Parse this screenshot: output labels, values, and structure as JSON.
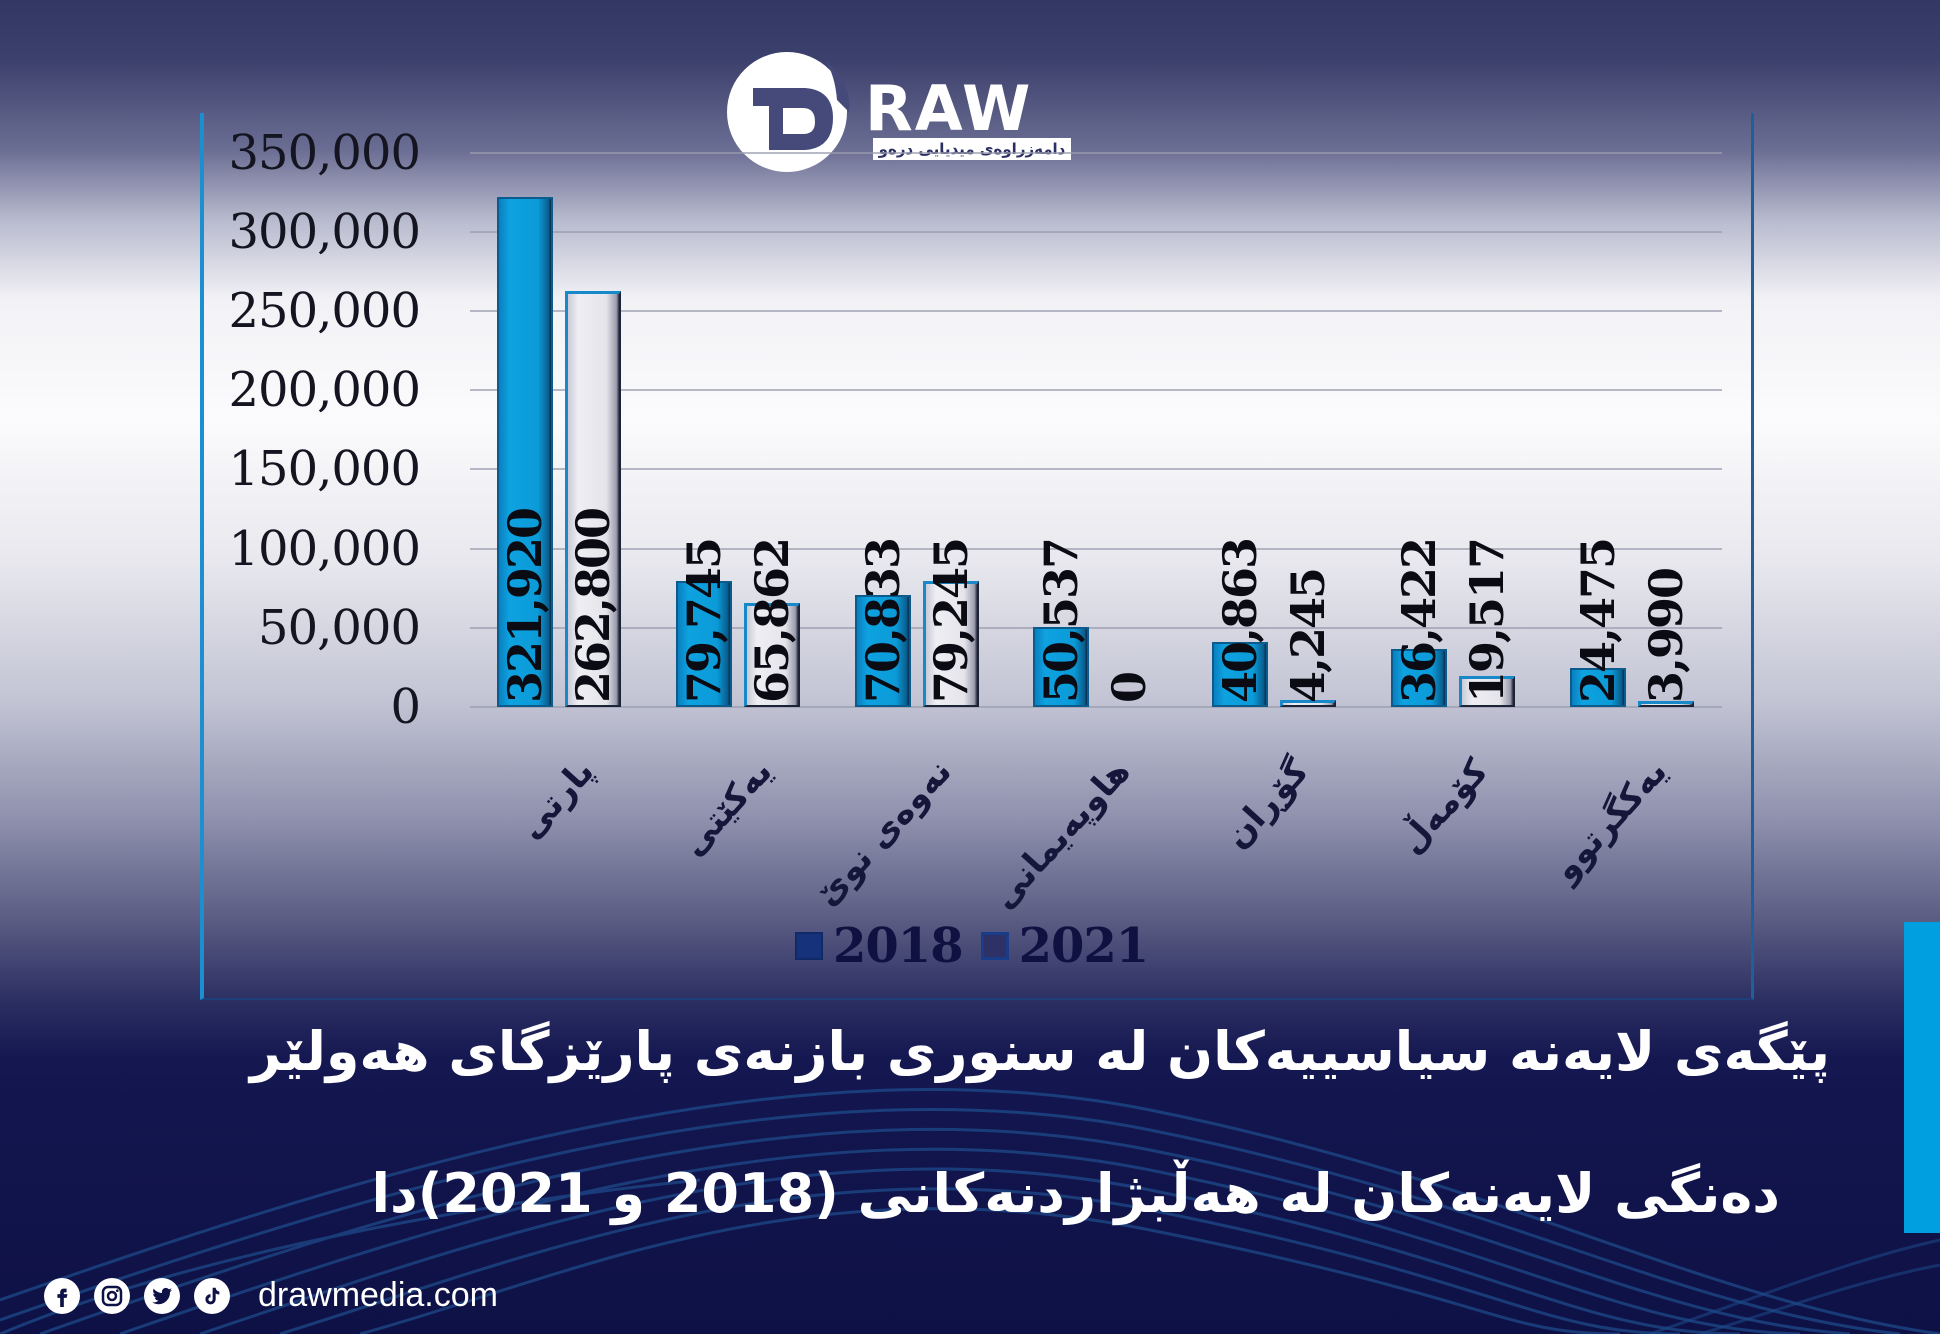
{
  "brand": {
    "logo_text": "RAW",
    "logo_tagline": "دامەزراوەی میدیایی درەو",
    "website": "drawmedia.com",
    "social_icons": [
      "facebook-icon",
      "instagram-icon",
      "twitter-icon",
      "tiktok-icon"
    ],
    "accent_color": "#00a0e0"
  },
  "title": {
    "line1": "پێگەی لایەنە سیاسییەکان لە سنوری بازنەی پارێزگای هەولێر",
    "line2": "دەنگی لایەنەکان لە هەڵبژاردنەکانی (2018 و 2021)دا"
  },
  "chart_data": {
    "type": "bar",
    "title": "پێگەی لایەنە سیاسییەکان لە سنوری بازنەی پارێزگای هەولێر — دەنگی لایەنەکان لە هەڵبژاردنەکانی (2018 و 2021)دا",
    "xlabel": "",
    "ylabel": "",
    "categories": [
      "پارتی",
      "یەکێتی",
      "نەوەی نوێ",
      "هاوپەیمانی",
      "گۆڕان",
      "کۆمەڵ",
      "یەکگرتوو"
    ],
    "series": [
      {
        "name": "2018",
        "color": "#0b9bd8",
        "values": [
          321920,
          79745,
          70833,
          50537,
          40863,
          36422,
          24475
        ],
        "labels": [
          "321,920",
          "79,745",
          "70,833",
          "50,537",
          "40,863",
          "36,422",
          "24,475"
        ]
      },
      {
        "name": "2021",
        "color": "#e4e4ea",
        "values": [
          262800,
          65862,
          79245,
          0,
          4245,
          19517,
          3990
        ],
        "labels": [
          "262,800",
          "65,862",
          "79,245",
          "0",
          "4,245",
          "19,517",
          "3,990"
        ]
      }
    ],
    "ylim": [
      0,
      350000
    ],
    "yticks": [
      "350,000",
      "300,000",
      "250,000",
      "200,000",
      "150,000",
      "100,000",
      "50,000",
      "0"
    ],
    "ytick_values": [
      350000,
      300000,
      250000,
      200000,
      150000,
      100000,
      50000,
      0
    ],
    "grid": true,
    "legend_position": "bottom",
    "legend": [
      "2018",
      "2021"
    ]
  }
}
